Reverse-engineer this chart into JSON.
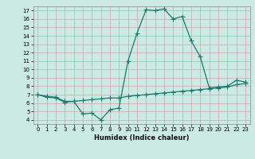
{
  "title": "",
  "xlabel": "Humidex (Indice chaleur)",
  "bg_color": "#cceae4",
  "grid_color": "#b8d8d0",
  "line_color": "#1a7a6e",
  "xlim": [
    -0.5,
    23.5
  ],
  "ylim": [
    3.5,
    17.5
  ],
  "yticks": [
    4,
    5,
    6,
    7,
    8,
    9,
    10,
    11,
    12,
    13,
    14,
    15,
    16,
    17
  ],
  "xticks": [
    0,
    1,
    2,
    3,
    4,
    5,
    6,
    7,
    8,
    9,
    10,
    11,
    12,
    13,
    14,
    15,
    16,
    17,
    18,
    19,
    20,
    21,
    22,
    23
  ],
  "line1_x": [
    0,
    1,
    2,
    3,
    4,
    5,
    6,
    7,
    8,
    9,
    10,
    11,
    12,
    13,
    14,
    15,
    16,
    17,
    18,
    19,
    20,
    21,
    22,
    23
  ],
  "line1_y": [
    7.0,
    6.7,
    6.6,
    6.1,
    6.2,
    4.7,
    4.8,
    4.0,
    5.2,
    5.4,
    11.0,
    14.3,
    17.1,
    17.0,
    17.2,
    16.0,
    16.3,
    13.4,
    11.5,
    7.8,
    7.9,
    8.0,
    8.7,
    8.5
  ],
  "line2_x": [
    0,
    1,
    2,
    3,
    4,
    5,
    6,
    7,
    8,
    9,
    10,
    11,
    12,
    13,
    14,
    15,
    16,
    17,
    18,
    19,
    20,
    21,
    22,
    23
  ],
  "line2_y": [
    7.0,
    6.8,
    6.7,
    6.2,
    6.2,
    6.3,
    6.4,
    6.5,
    6.6,
    6.6,
    6.8,
    6.9,
    7.0,
    7.1,
    7.2,
    7.3,
    7.4,
    7.5,
    7.6,
    7.7,
    7.8,
    7.9,
    8.2,
    8.3
  ],
  "marker_size": 2.0,
  "linewidth": 0.9,
  "tick_labelsize": 5.0,
  "xlabel_fontsize": 6.0
}
